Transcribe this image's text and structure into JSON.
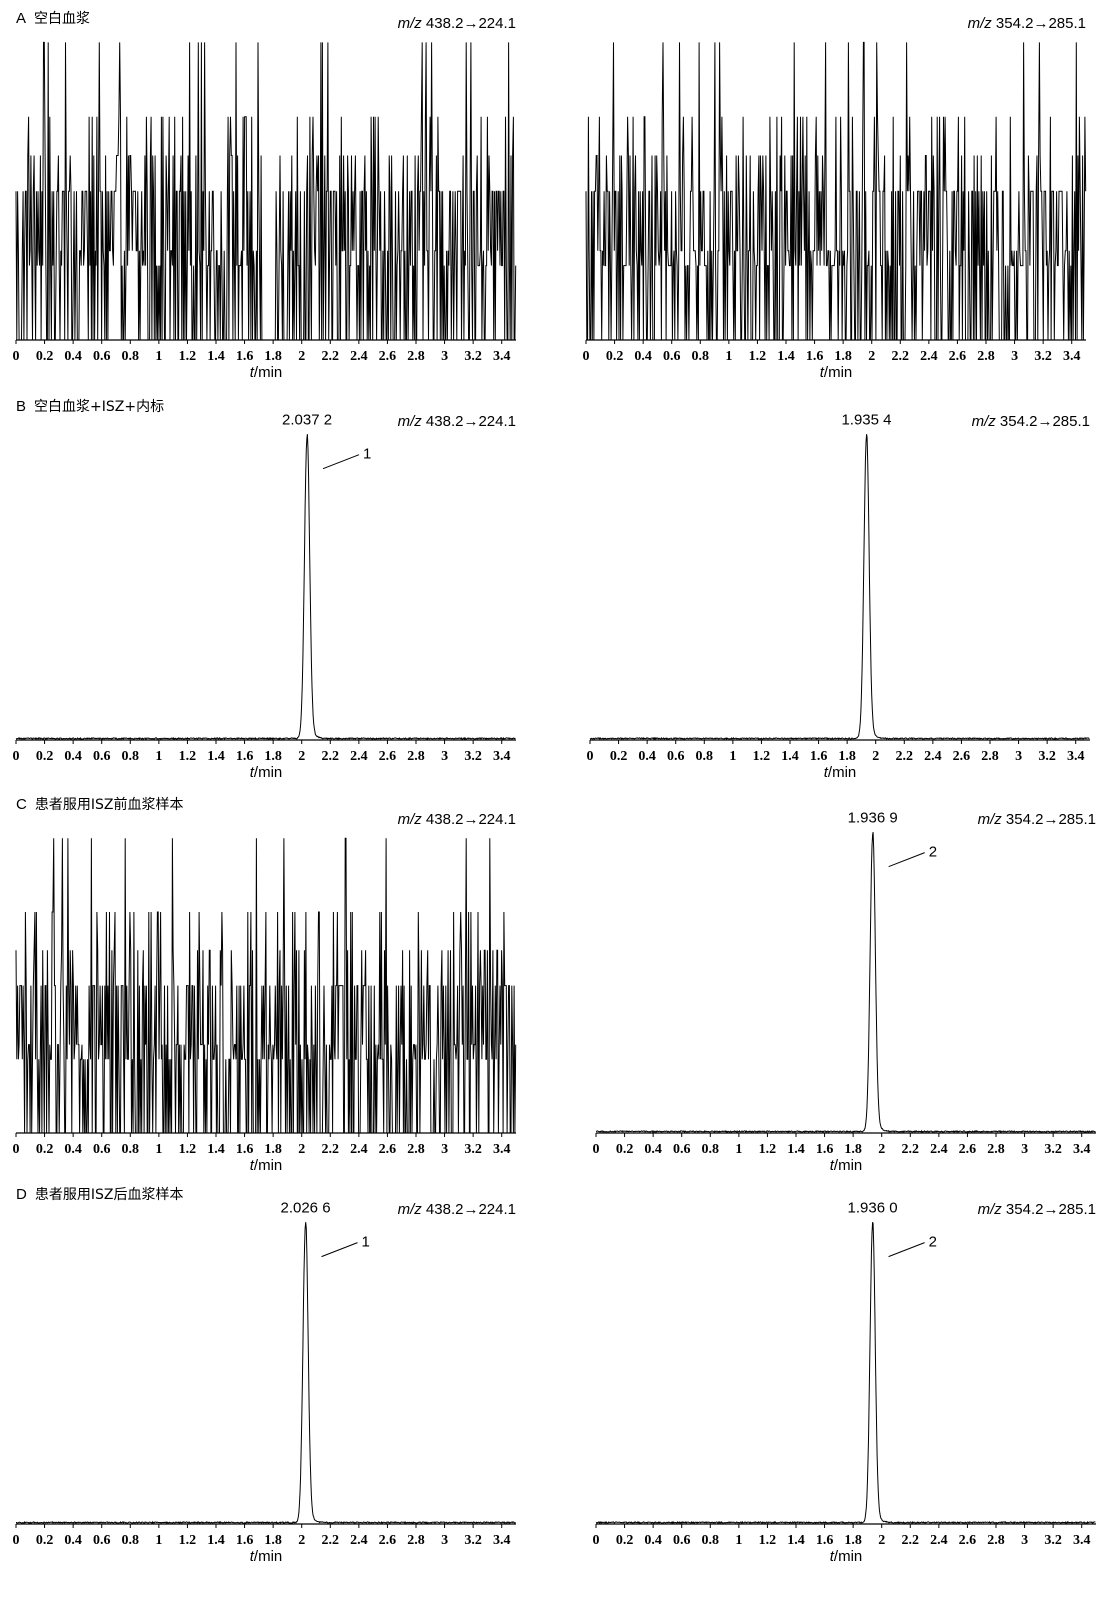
{
  "panels": [
    {
      "letter": "A",
      "title": "空白血浆"
    },
    {
      "letter": "B",
      "title": "空白血浆+ISZ+内标"
    },
    {
      "letter": "C",
      "title": "患者服用ISZ前血浆样本"
    },
    {
      "letter": "D",
      "title": "患者服用ISZ后血浆样本"
    }
  ],
  "chart_data": [
    {
      "type": "line",
      "panel": "A",
      "mz_label": "m/z 438.2→224.1",
      "xlabel": "t/min",
      "xlim": [
        0,
        3.5
      ],
      "ticks": [
        "0",
        "0.2",
        "0.4",
        "0.6",
        "0.8",
        "1",
        "1.2",
        "1.4",
        "1.6",
        "1.8",
        "2",
        "2.2",
        "2.4",
        "2.6",
        "2.8",
        "3",
        "3.2",
        "3.4"
      ],
      "signal": "noise",
      "peaks": []
    },
    {
      "type": "line",
      "panel": "A",
      "mz_label": "m/z 354.2→285.1",
      "xlabel": "t/min",
      "xlim": [
        0,
        3.5
      ],
      "ticks": [
        "0",
        "0.2",
        "0.4",
        "0.6",
        "0.8",
        "1",
        "1.2",
        "1.4",
        "1.6",
        "1.8",
        "2",
        "2.2",
        "2.4",
        "2.6",
        "2.8",
        "3",
        "3.2",
        "3.4"
      ],
      "signal": "noise",
      "peaks": []
    },
    {
      "type": "line",
      "panel": "B",
      "mz_label": "m/z 438.2→224.1",
      "xlabel": "t/min",
      "xlim": [
        0,
        3.5
      ],
      "ticks": [
        "0",
        "0.2",
        "0.4",
        "0.6",
        "0.8",
        "1",
        "1.2",
        "1.4",
        "1.6",
        "1.8",
        "2",
        "2.2",
        "2.4",
        "2.6",
        "2.8",
        "3",
        "3.2",
        "3.4"
      ],
      "signal": "peak",
      "peaks": [
        {
          "rt": 2.0372,
          "label": "2.037 2",
          "id": "1"
        }
      ]
    },
    {
      "type": "line",
      "panel": "B",
      "mz_label": "m/z 354.2→285.1",
      "xlabel": "t/min",
      "xlim": [
        0,
        3.5
      ],
      "ticks": [
        "0",
        "0.2",
        "0.4",
        "0.6",
        "0.8",
        "1",
        "1.2",
        "1.4",
        "1.6",
        "1.8",
        "2",
        "2.2",
        "2.4",
        "2.6",
        "2.8",
        "3",
        "3.2",
        "3.4"
      ],
      "signal": "peak",
      "peaks": [
        {
          "rt": 1.9354,
          "label": "1.935 4",
          "id": ""
        }
      ]
    },
    {
      "type": "line",
      "panel": "C",
      "mz_label": "m/z 438.2→224.1",
      "xlabel": "t/min",
      "xlim": [
        0,
        3.5
      ],
      "ticks": [
        "0",
        "0.2",
        "0.4",
        "0.6",
        "0.8",
        "1",
        "1.2",
        "1.4",
        "1.6",
        "1.8",
        "2",
        "2.2",
        "2.4",
        "2.6",
        "2.8",
        "3",
        "3.2",
        "3.4"
      ],
      "signal": "noise",
      "peaks": []
    },
    {
      "type": "line",
      "panel": "C",
      "mz_label": "m/z 354.2→285.1",
      "xlabel": "t/min",
      "xlim": [
        0,
        3.5
      ],
      "ticks": [
        "0",
        "0.2",
        "0.4",
        "0.6",
        "0.8",
        "1",
        "1.2",
        "1.4",
        "1.6",
        "1.8",
        "2",
        "2.2",
        "2.4",
        "2.6",
        "2.8",
        "3",
        "3.2",
        "3.4"
      ],
      "signal": "peak",
      "peaks": [
        {
          "rt": 1.9369,
          "label": "1.936 9",
          "id": "2"
        }
      ]
    },
    {
      "type": "line",
      "panel": "D",
      "mz_label": "m/z 438.2→224.1",
      "xlabel": "t/min",
      "xlim": [
        0,
        3.5
      ],
      "ticks": [
        "0",
        "0.2",
        "0.4",
        "0.6",
        "0.8",
        "1",
        "1.2",
        "1.4",
        "1.6",
        "1.8",
        "2",
        "2.2",
        "2.4",
        "2.6",
        "2.8",
        "3",
        "3.2",
        "3.4"
      ],
      "signal": "peak",
      "peaks": [
        {
          "rt": 2.0266,
          "label": "2.026 6",
          "id": "1"
        }
      ]
    },
    {
      "type": "line",
      "panel": "D",
      "mz_label": "m/z 354.2→285.1",
      "xlabel": "t/min",
      "xlim": [
        0,
        3.5
      ],
      "ticks": [
        "0",
        "0.2",
        "0.4",
        "0.6",
        "0.8",
        "1",
        "1.2",
        "1.4",
        "1.6",
        "1.8",
        "2",
        "2.2",
        "2.4",
        "2.6",
        "2.8",
        "3",
        "3.2",
        "3.4"
      ],
      "signal": "peak",
      "peaks": [
        {
          "rt": 1.936,
          "label": "1.936 0",
          "id": "2"
        }
      ]
    }
  ]
}
